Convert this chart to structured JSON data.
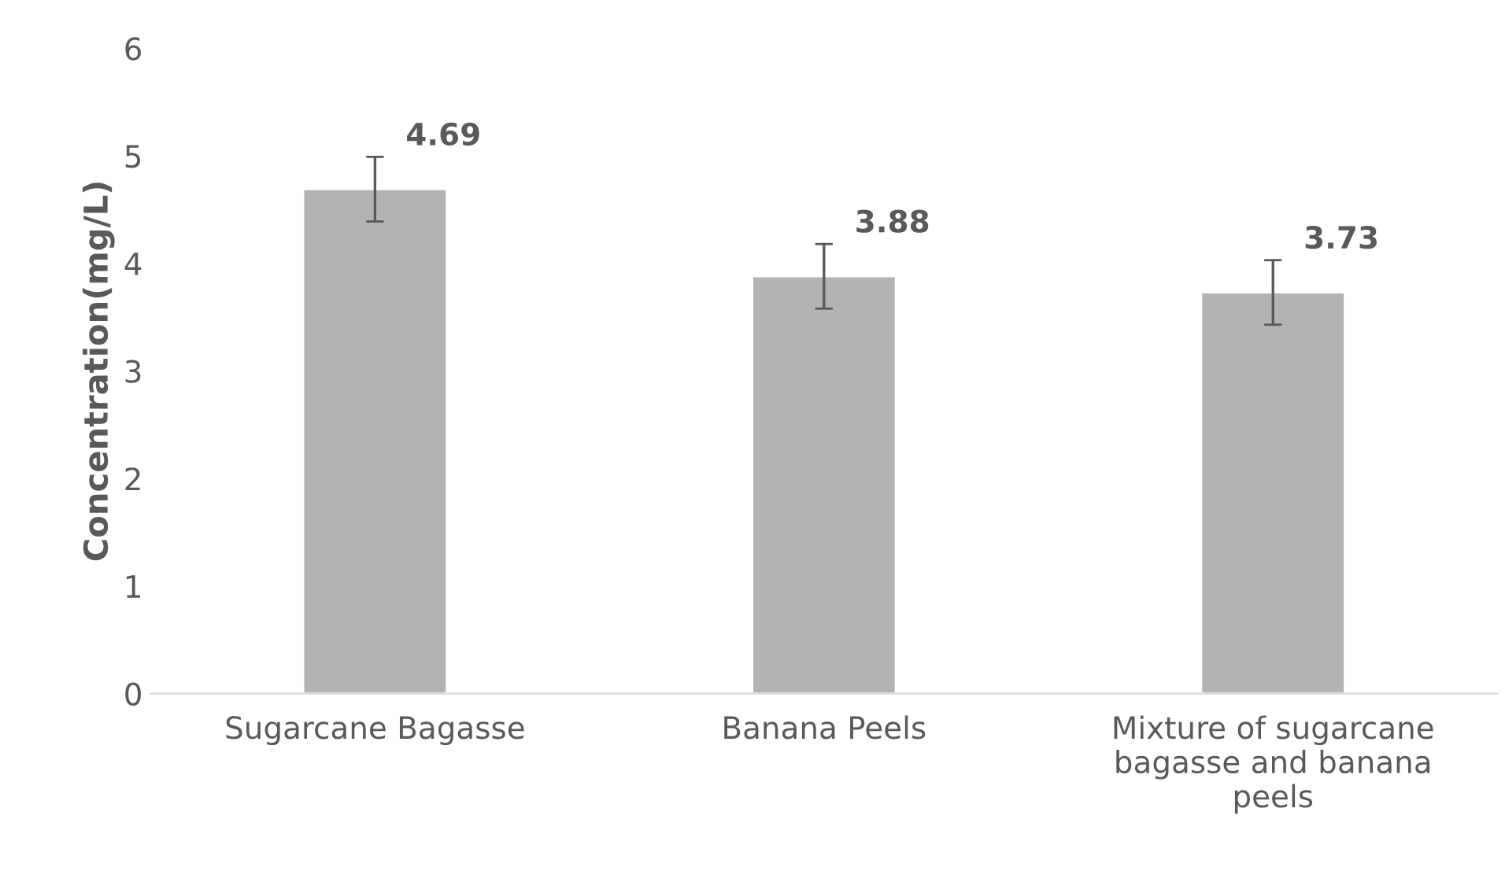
{
  "chart_data": {
    "type": "bar",
    "ylabel": "Concentration(mg/L)",
    "categories": [
      "Sugarcane Bagasse",
      "Banana Peels",
      "Mixture of sugarcane\nbagasse and banana\npeels"
    ],
    "values": [
      4.69,
      3.88,
      3.73
    ],
    "errors": [
      0.3,
      0.3,
      0.3
    ],
    "color": "#b3b3b3",
    "ylim": [
      0,
      6
    ],
    "yticks": [
      0,
      1,
      2,
      3,
      4,
      5,
      6
    ],
    "grid": false,
    "data_labels": true
  }
}
